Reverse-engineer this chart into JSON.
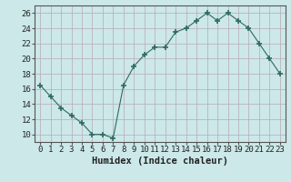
{
  "x": [
    0,
    1,
    2,
    3,
    4,
    5,
    6,
    7,
    8,
    9,
    10,
    11,
    12,
    13,
    14,
    15,
    16,
    17,
    18,
    19,
    20,
    21,
    22,
    23
  ],
  "y": [
    16.5,
    15,
    13.5,
    12.5,
    11.5,
    10,
    10,
    9.5,
    16.5,
    19,
    20.5,
    21.5,
    21.5,
    23.5,
    24,
    25,
    26,
    25,
    26,
    25,
    24,
    22,
    20,
    18
  ],
  "line_color": "#2e6b5e",
  "marker": "+",
  "marker_size": 5,
  "marker_lw": 1.2,
  "bg_color": "#cce8e8",
  "grid_color": "#b8a8b8",
  "xlabel": "Humidex (Indice chaleur)",
  "xlabel_fontsize": 7.5,
  "tick_fontsize": 6.5,
  "ylim": [
    9,
    27
  ],
  "yticks": [
    10,
    12,
    14,
    16,
    18,
    20,
    22,
    24,
    26
  ],
  "xlim": [
    -0.5,
    23.5
  ],
  "xticks": [
    0,
    1,
    2,
    3,
    4,
    5,
    6,
    7,
    8,
    9,
    10,
    11,
    12,
    13,
    14,
    15,
    16,
    17,
    18,
    19,
    20,
    21,
    22,
    23
  ],
  "spine_color": "#555555",
  "line_width": 0.8
}
